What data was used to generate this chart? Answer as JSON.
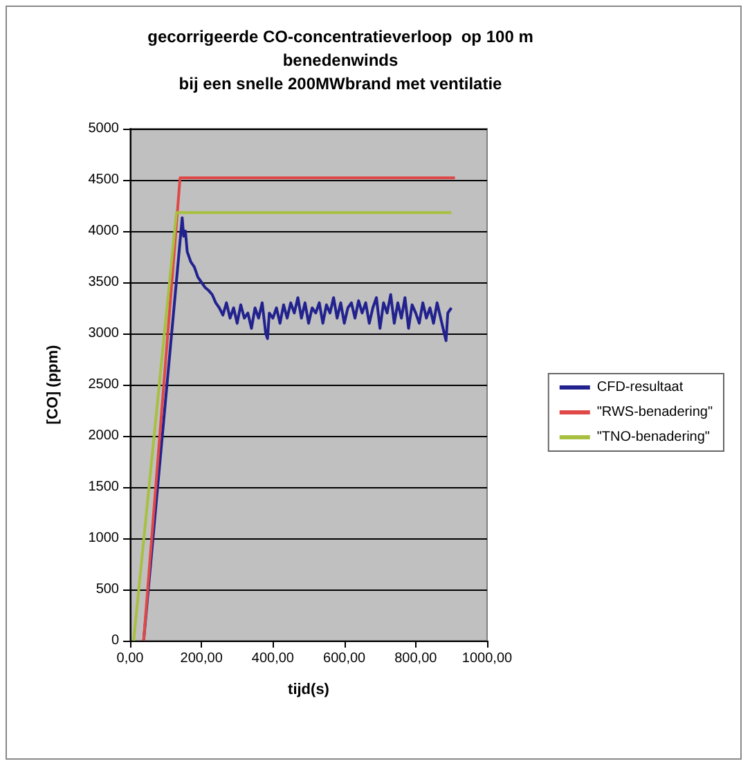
{
  "chart_data": {
    "type": "line",
    "title": "gecorrigeerde CO-concentratieverloop  op 100 m\nbenedenwinds\nbij een snelle 200MWbrand met ventilatie",
    "xlabel": "tijd(s)",
    "ylabel": "[CO] (ppm)",
    "xlim": [
      0,
      1000
    ],
    "xticks": [
      {
        "value": 0,
        "label": "0,00"
      },
      {
        "value": 200,
        "label": "200,00"
      },
      {
        "value": 400,
        "label": "400,00"
      },
      {
        "value": 600,
        "label": "600,00"
      },
      {
        "value": 800,
        "label": "800,00"
      },
      {
        "value": 1000,
        "label": "1000,00"
      }
    ],
    "ylim": [
      0,
      5000
    ],
    "yticks": [
      0,
      500,
      1000,
      1500,
      2000,
      2500,
      3000,
      3500,
      4000,
      4500,
      5000
    ],
    "grid": "y",
    "legend": "right",
    "marker": "none",
    "series": [
      {
        "name": "CFD-resultaat",
        "color": "#22228f",
        "x": [
          38,
          146,
          150,
          155,
          160,
          170,
          180,
          190,
          200,
          210,
          220,
          230,
          240,
          250,
          260,
          270,
          280,
          290,
          300,
          310,
          320,
          330,
          340,
          350,
          360,
          370,
          380,
          385,
          390,
          400,
          410,
          420,
          430,
          440,
          450,
          460,
          470,
          480,
          490,
          500,
          510,
          520,
          530,
          540,
          550,
          560,
          570,
          580,
          590,
          600,
          610,
          620,
          630,
          640,
          650,
          660,
          670,
          680,
          690,
          700,
          710,
          720,
          730,
          740,
          750,
          760,
          770,
          780,
          790,
          800,
          810,
          820,
          830,
          840,
          850,
          860,
          870,
          880,
          885,
          890,
          900
        ],
        "values": [
          0,
          4130,
          3950,
          4000,
          3800,
          3700,
          3650,
          3550,
          3500,
          3450,
          3420,
          3380,
          3300,
          3250,
          3180,
          3300,
          3150,
          3250,
          3100,
          3280,
          3150,
          3200,
          3050,
          3250,
          3150,
          3300,
          3000,
          2950,
          3200,
          3150,
          3250,
          3100,
          3280,
          3150,
          3300,
          3200,
          3350,
          3150,
          3300,
          3100,
          3250,
          3200,
          3300,
          3100,
          3280,
          3200,
          3350,
          3150,
          3300,
          3100,
          3250,
          3300,
          3150,
          3320,
          3200,
          3300,
          3100,
          3250,
          3350,
          3050,
          3300,
          3200,
          3380,
          3100,
          3300,
          3150,
          3350,
          3050,
          3280,
          3200,
          3100,
          3300,
          3150,
          3250,
          3100,
          3300,
          3150,
          3000,
          2930,
          3200,
          3250
        ]
      },
      {
        "name": "\"RWS-benadering\"",
        "color": "#e04848",
        "x": [
          38,
          140,
          910
        ],
        "values": [
          0,
          4520,
          4520
        ]
      },
      {
        "name": "\"TNO-benadering\"",
        "color": "#a8c040",
        "x": [
          10,
          130,
          900
        ],
        "values": [
          0,
          4180,
          4180
        ]
      }
    ]
  }
}
